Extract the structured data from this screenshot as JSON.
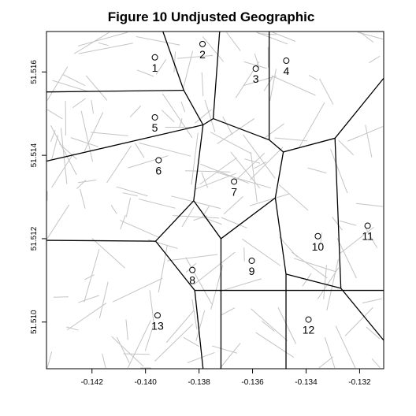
{
  "chart_data": {
    "type": "scatter",
    "title": "Figure 10 Undjusted Geographic",
    "xlabel": "",
    "ylabel": "",
    "xlim": [
      -0.1437,
      -0.1311
    ],
    "ylim": [
      51.50888,
      51.51697
    ],
    "x_ticks": [
      -0.142,
      -0.14,
      -0.138,
      -0.136,
      -0.134,
      -0.132
    ],
    "x_tick_labels": [
      "-0.142",
      "-0.140",
      "-0.138",
      "-0.136",
      "-0.134",
      "-0.132"
    ],
    "y_ticks": [
      51.51,
      51.512,
      51.514,
      51.516
    ],
    "y_tick_labels": [
      "51.510",
      "51.512",
      "51.514",
      "51.516"
    ],
    "points": [
      {
        "label": "1",
        "x": -0.13965,
        "y": 51.51635
      },
      {
        "label": "2",
        "x": -0.13787,
        "y": 51.51667
      },
      {
        "label": "3",
        "x": -0.13588,
        "y": 51.51608
      },
      {
        "label": "4",
        "x": -0.13474,
        "y": 51.51627
      },
      {
        "label": "5",
        "x": -0.13965,
        "y": 51.51491
      },
      {
        "label": "6",
        "x": -0.13951,
        "y": 51.51388
      },
      {
        "label": "7",
        "x": -0.13669,
        "y": 51.51337
      },
      {
        "label": "8",
        "x": -0.13825,
        "y": 51.51125
      },
      {
        "label": "9",
        "x": -0.13603,
        "y": 51.51147
      },
      {
        "label": "10",
        "x": -0.13356,
        "y": 51.51206
      },
      {
        "label": "11",
        "x": -0.1317,
        "y": 51.51231
      },
      {
        "label": "12",
        "x": -0.13391,
        "y": 51.51006
      },
      {
        "label": "13",
        "x": -0.13955,
        "y": 51.51016
      }
    ],
    "voronoi_edges": [
      [
        [
          -0.13935,
          51.51697
        ],
        [
          -0.13857,
          51.51556
        ]
      ],
      [
        [
          -0.1437,
          51.51552
        ],
        [
          -0.13857,
          51.51556
        ]
      ],
      [
        [
          -0.13857,
          51.51556
        ],
        [
          -0.13785,
          51.51473
        ]
      ],
      [
        [
          -0.13723,
          51.51697
        ],
        [
          -0.13747,
          51.51488
        ]
      ],
      [
        [
          -0.13785,
          51.51473
        ],
        [
          -0.13747,
          51.51488
        ]
      ],
      [
        [
          -0.13747,
          51.51488
        ],
        [
          -0.13538,
          51.51437
        ]
      ],
      [
        [
          -0.13538,
          51.51697
        ],
        [
          -0.13538,
          51.51437
        ]
      ],
      [
        [
          -0.13538,
          51.51437
        ],
        [
          -0.13485,
          51.51408
        ]
      ],
      [
        [
          -0.13485,
          51.51408
        ],
        [
          -0.13292,
          51.51441
        ]
      ],
      [
        [
          -0.13292,
          51.51441
        ],
        [
          -0.1311,
          51.51585
        ]
      ],
      [
        [
          -0.1437,
          51.51386
        ],
        [
          -0.13785,
          51.51473
        ]
      ],
      [
        [
          -0.13785,
          51.51473
        ],
        [
          -0.1382,
          51.51291
        ]
      ],
      [
        [
          -0.13485,
          51.51408
        ],
        [
          -0.13515,
          51.51298
        ]
      ],
      [
        [
          -0.1382,
          51.51291
        ],
        [
          -0.13718,
          51.512
        ]
      ],
      [
        [
          -0.13515,
          51.51298
        ],
        [
          -0.13718,
          51.512
        ]
      ],
      [
        [
          -0.1437,
          51.51196
        ],
        [
          -0.13962,
          51.51194
        ]
      ],
      [
        [
          -0.13962,
          51.51194
        ],
        [
          -0.1382,
          51.51291
        ]
      ],
      [
        [
          -0.13962,
          51.51194
        ],
        [
          -0.13816,
          51.51076
        ]
      ],
      [
        [
          -0.13816,
          51.51076
        ],
        [
          -0.13785,
          51.50888
        ]
      ],
      [
        [
          -0.13718,
          51.512
        ],
        [
          -0.13718,
          51.50888
        ]
      ],
      [
        [
          -0.13515,
          51.51298
        ],
        [
          -0.13475,
          51.51115
        ]
      ],
      [
        [
          -0.13475,
          51.51115
        ],
        [
          -0.13475,
          51.50888
        ]
      ],
      [
        [
          -0.13475,
          51.51115
        ],
        [
          -0.1327,
          51.51081
        ]
      ],
      [
        [
          -0.13292,
          51.51441
        ],
        [
          -0.1327,
          51.51081
        ]
      ],
      [
        [
          -0.1327,
          51.51081
        ],
        [
          -0.1311,
          51.50956
        ]
      ],
      [
        [
          -0.13962,
          51.51194
        ],
        [
          -0.13962,
          51.51194
        ]
      ],
      [
        [
          -0.13816,
          51.51076
        ],
        [
          -0.1311,
          51.51076
        ]
      ]
    ]
  }
}
